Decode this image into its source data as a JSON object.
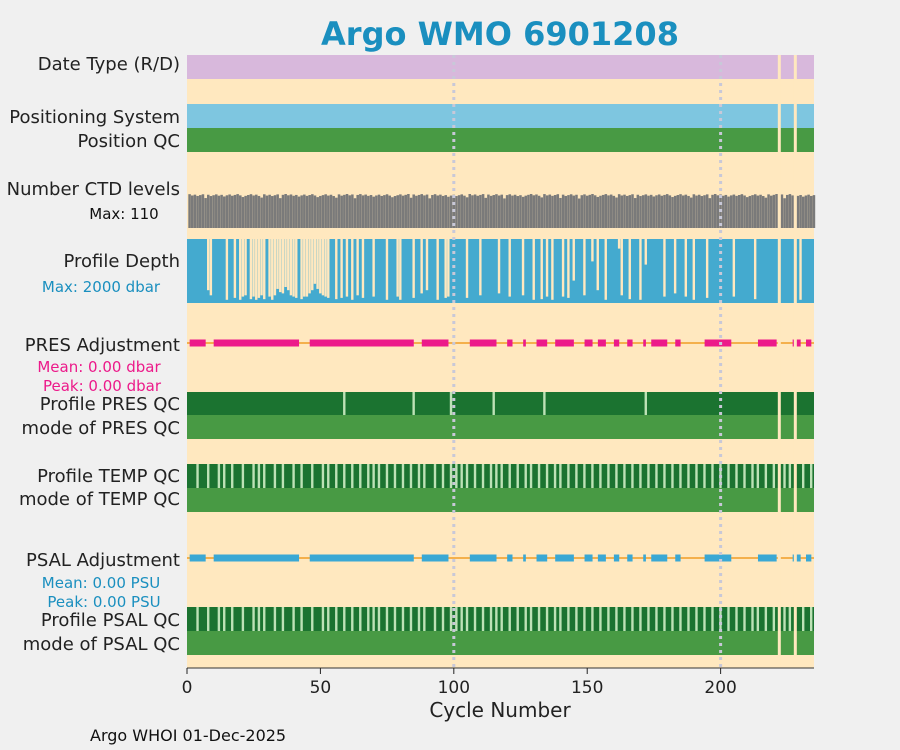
{
  "chart_data": {
    "type": "multi-panel-timeline",
    "title": "Argo WMO 6901208",
    "xlabel": "Cycle Number",
    "xlim": [
      0,
      235
    ],
    "x_ticks": [
      0,
      50,
      100,
      150,
      200
    ],
    "vertical_gridlines": [
      100,
      200
    ],
    "footer": "Argo WHOI 01-Dec-2025",
    "row_labels": {
      "date_type": "Date Type (R/D)",
      "positioning_system": "Positioning System",
      "position_qc": "Position QC",
      "ctd_levels": "Number CTD levels",
      "profile_depth": "Profile Depth",
      "pres_adjustment": "PRES Adjustment",
      "profile_pres_qc": "Profile PRES QC",
      "mode_pres_qc": "mode of PRES QC",
      "profile_temp_qc": "Profile TEMP QC",
      "mode_temp_qc": "mode of TEMP QC",
      "psal_adjustment": "PSAL Adjustment",
      "profile_psal_qc": "Profile PSAL QC",
      "mode_psal_qc": "mode of PSAL QC"
    },
    "annotations": {
      "ctd_max": "Max: 110",
      "depth_max": "Max: 2000 dbar",
      "pres_mean": "Mean: 0.00 dbar",
      "pres_peak": "Peak: 0.00 dbar",
      "psal_mean": "Mean: 0.00 PSU",
      "psal_peak": "Peak: 0.00 PSU"
    },
    "missing_cycles": [
      222,
      228
    ],
    "ctd_levels_max": 110,
    "profile_depth_max_dbar": 2000,
    "profile_depth_shallow_cycles": [
      [
        8,
        0.2
      ],
      [
        9,
        0.12
      ],
      [
        15,
        0.05
      ],
      [
        18,
        0.08
      ],
      [
        20,
        0.05
      ],
      [
        21,
        0.1
      ],
      [
        22,
        0.12
      ],
      [
        24,
        0.06
      ],
      [
        25,
        0.1
      ],
      [
        26,
        0.05
      ],
      [
        27,
        0.08
      ],
      [
        28,
        0.12
      ],
      [
        29,
        0.06
      ],
      [
        31,
        0.1
      ],
      [
        32,
        0.05
      ],
      [
        33,
        0.12
      ],
      [
        34,
        0.22
      ],
      [
        35,
        0.17
      ],
      [
        36,
        0.15
      ],
      [
        37,
        0.25
      ],
      [
        38,
        0.2
      ],
      [
        39,
        0.12
      ],
      [
        40,
        0.1
      ],
      [
        41,
        0.08
      ],
      [
        43,
        0.06
      ],
      [
        44,
        0.1
      ],
      [
        45,
        0.1
      ],
      [
        46,
        0.15
      ],
      [
        47,
        0.2
      ],
      [
        48,
        0.3
      ],
      [
        49,
        0.22
      ],
      [
        50,
        0.15
      ],
      [
        51,
        0.12
      ],
      [
        52,
        0.1
      ],
      [
        53,
        0.08
      ],
      [
        56,
        0.06
      ],
      [
        58,
        0.08
      ],
      [
        60,
        0.1
      ],
      [
        62,
        0.05
      ],
      [
        64,
        0.12
      ],
      [
        66,
        0.08
      ],
      [
        70,
        0.1
      ],
      [
        75,
        0.05
      ],
      [
        79,
        0.1
      ],
      [
        80,
        0.05
      ],
      [
        85,
        0.08
      ],
      [
        88,
        0.15
      ],
      [
        90,
        0.2
      ],
      [
        94,
        0.05
      ],
      [
        97,
        0.08
      ],
      [
        98,
        0.1
      ],
      [
        105,
        0.08
      ],
      [
        110,
        0.12
      ],
      [
        117,
        0.15
      ],
      [
        121,
        0.1
      ],
      [
        126,
        0.12
      ],
      [
        130,
        0.05
      ],
      [
        133,
        0.06
      ],
      [
        135,
        0.1
      ],
      [
        137,
        0.05
      ],
      [
        141,
        0.1
      ],
      [
        143,
        0.08
      ],
      [
        145,
        0.35
      ],
      [
        149,
        0.12
      ],
      [
        152,
        0.65
      ],
      [
        154,
        0.2
      ],
      [
        157,
        0.05
      ],
      [
        162,
        0.85
      ],
      [
        163,
        0.12
      ],
      [
        166,
        0.06
      ],
      [
        170,
        0.05
      ],
      [
        172,
        0.6
      ],
      [
        179,
        0.1
      ],
      [
        183,
        0.15
      ],
      [
        187,
        0.1
      ],
      [
        190,
        0.05
      ],
      [
        195,
        0.08
      ],
      [
        205,
        0.1
      ],
      [
        213,
        0.06
      ],
      [
        230,
        0.05
      ]
    ],
    "pres_adjustment_segments": [
      [
        1,
        7
      ],
      [
        10,
        42
      ],
      [
        46,
        85
      ],
      [
        88,
        98
      ],
      [
        106,
        116
      ],
      [
        120,
        122
      ],
      [
        126,
        127
      ],
      [
        131,
        135
      ],
      [
        138,
        145
      ],
      [
        149,
        152
      ],
      [
        154,
        157
      ],
      [
        160,
        162
      ],
      [
        165,
        167
      ],
      [
        171,
        172
      ],
      [
        174,
        180
      ],
      [
        183,
        185
      ],
      [
        194,
        204
      ],
      [
        214,
        221
      ],
      [
        227,
        230
      ],
      [
        232,
        234
      ]
    ],
    "psal_adjustment_segments": [
      [
        1,
        7
      ],
      [
        10,
        42
      ],
      [
        46,
        85
      ],
      [
        88,
        98
      ],
      [
        106,
        116
      ],
      [
        120,
        122
      ],
      [
        126,
        127
      ],
      [
        131,
        135
      ],
      [
        138,
        145
      ],
      [
        149,
        152
      ],
      [
        154,
        157
      ],
      [
        160,
        162
      ],
      [
        165,
        167
      ],
      [
        171,
        172
      ],
      [
        174,
        180
      ],
      [
        183,
        185
      ],
      [
        194,
        204
      ],
      [
        214,
        221
      ],
      [
        227,
        230
      ],
      [
        232,
        234
      ]
    ],
    "profile_pres_qc_light_cycles": [
      59,
      85,
      99,
      115,
      134,
      172,
      228
    ],
    "profile_temp_qc_light_cycles": [
      4,
      8,
      12,
      14,
      17,
      21,
      25,
      27,
      29,
      33,
      36,
      40,
      43,
      47,
      51,
      53,
      56,
      59,
      62,
      65,
      68,
      70,
      72,
      75,
      78,
      81,
      84,
      87,
      89,
      93,
      96,
      99,
      101,
      103,
      105,
      108,
      111,
      114,
      116,
      118,
      121,
      124,
      127,
      129,
      132,
      135,
      138,
      140,
      143,
      146,
      149,
      152,
      155,
      158,
      161,
      164,
      167,
      170,
      173,
      176,
      179,
      182,
      185,
      188,
      191,
      194,
      197,
      200,
      203,
      206,
      209,
      212,
      214,
      217,
      220,
      224,
      226,
      231,
      234
    ],
    "profile_psal_qc_light_cycles": [
      4,
      8,
      12,
      14,
      17,
      21,
      25,
      27,
      29,
      33,
      36,
      40,
      43,
      47,
      51,
      53,
      56,
      59,
      62,
      65,
      68,
      70,
      72,
      75,
      78,
      81,
      84,
      87,
      89,
      93,
      96,
      99,
      101,
      103,
      105,
      108,
      111,
      114,
      116,
      118,
      121,
      124,
      127,
      129,
      132,
      135,
      138,
      140,
      143,
      146,
      149,
      152,
      155,
      158,
      161,
      164,
      167,
      170,
      173,
      176,
      179,
      182,
      185,
      188,
      191,
      194,
      197,
      200,
      203,
      206,
      209,
      212,
      214,
      217,
      220,
      224,
      226,
      231,
      234
    ],
    "colors": {
      "background": "#ffe8bf",
      "date_type": "#d8b8dc",
      "positioning": "#7ec6e0",
      "qc_good": "#489a44",
      "qc_profile_dark": "#1b7330",
      "qc_light": "#bde2b6",
      "ctd": "#7a7a7a",
      "depth": "#44aacf",
      "pres_line": "#ec1a8a",
      "psal_line": "#3aa8d4",
      "thin_line": "#f4b04c",
      "grid": "#c8c8d8",
      "title": "#1a8fbf",
      "pres_text": "#ec1a8a",
      "psal_text": "#1a8fbf",
      "depth_text": "#1a8fbf"
    }
  }
}
